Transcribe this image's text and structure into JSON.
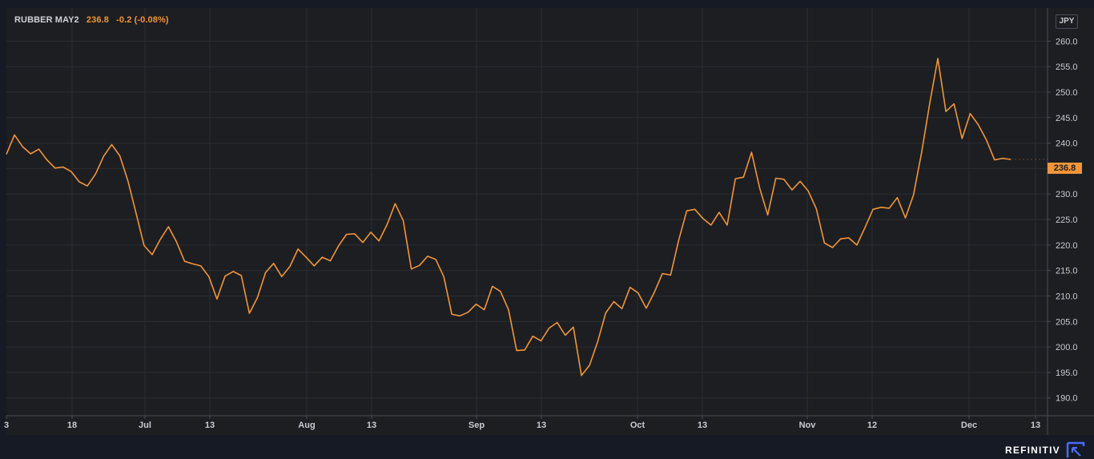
{
  "legend": {
    "symbol": "RUBBER MAY2",
    "last": "236.8",
    "change": "-0.2 (-0.08%)"
  },
  "currency": "JPY",
  "last_price_tag": "236.8",
  "brand": "REFINITIV",
  "colors": {
    "background": "#1d1e22",
    "line": "#f0953a",
    "grid": "#2b2d33",
    "text": "#c9cbd1"
  },
  "chart_data": {
    "type": "line",
    "title": "",
    "xlabel": "",
    "ylabel": "",
    "ylim": [
      186.5,
      266.5
    ],
    "y_ticks": [
      190,
      195,
      200,
      205,
      210,
      215,
      220,
      225,
      230,
      235,
      240,
      245,
      250,
      255,
      260
    ],
    "x_ticks": [
      "3",
      "18",
      "Jul",
      "13",
      "Aug",
      "13",
      "Sep",
      "13",
      "Oct",
      "13",
      "Nov",
      "12",
      "Dec",
      "13"
    ],
    "grid": true,
    "legend": "top-left",
    "series": [
      {
        "name": "RUBBER MAY2",
        "values": [
          237.8,
          241.6,
          239.3,
          237.9,
          238.8,
          236.7,
          235.1,
          235.3,
          234.4,
          232.4,
          231.6,
          233.9,
          237.4,
          239.7,
          237.5,
          232.6,
          226.3,
          219.9,
          218.1,
          221.1,
          223.6,
          220.6,
          216.8,
          216.3,
          215.9,
          213.8,
          209.4,
          213.9,
          214.8,
          214.0,
          206.6,
          209.7,
          214.6,
          216.4,
          213.8,
          215.8,
          219.2,
          217.6,
          215.9,
          217.6,
          216.9,
          219.8,
          222.1,
          222.2,
          220.5,
          222.5,
          220.8,
          224.0,
          228.1,
          224.8,
          215.3,
          216.0,
          217.8,
          217.2,
          213.8,
          206.4,
          206.1,
          206.8,
          208.4,
          207.3,
          211.9,
          210.9,
          207.3,
          199.3,
          199.4,
          202.1,
          201.2,
          203.7,
          204.8,
          202.3,
          203.9,
          194.4,
          196.4,
          201.0,
          206.7,
          208.9,
          207.5,
          211.7,
          210.6,
          207.6,
          210.7,
          214.4,
          214.1,
          220.9,
          226.7,
          227.0,
          225.2,
          223.9,
          226.4,
          223.9,
          233.0,
          233.3,
          238.2,
          231.2,
          225.9,
          233.1,
          232.9,
          230.8,
          232.5,
          230.6,
          227.1,
          220.4,
          219.5,
          221.2,
          221.4,
          220.0,
          223.4,
          227.0,
          227.4,
          227.2,
          229.3,
          225.3,
          229.8,
          238.2,
          247.8,
          256.6,
          246.2,
          247.7,
          240.9,
          245.8,
          243.6,
          240.6,
          236.7,
          237.0,
          236.8
        ]
      }
    ]
  }
}
